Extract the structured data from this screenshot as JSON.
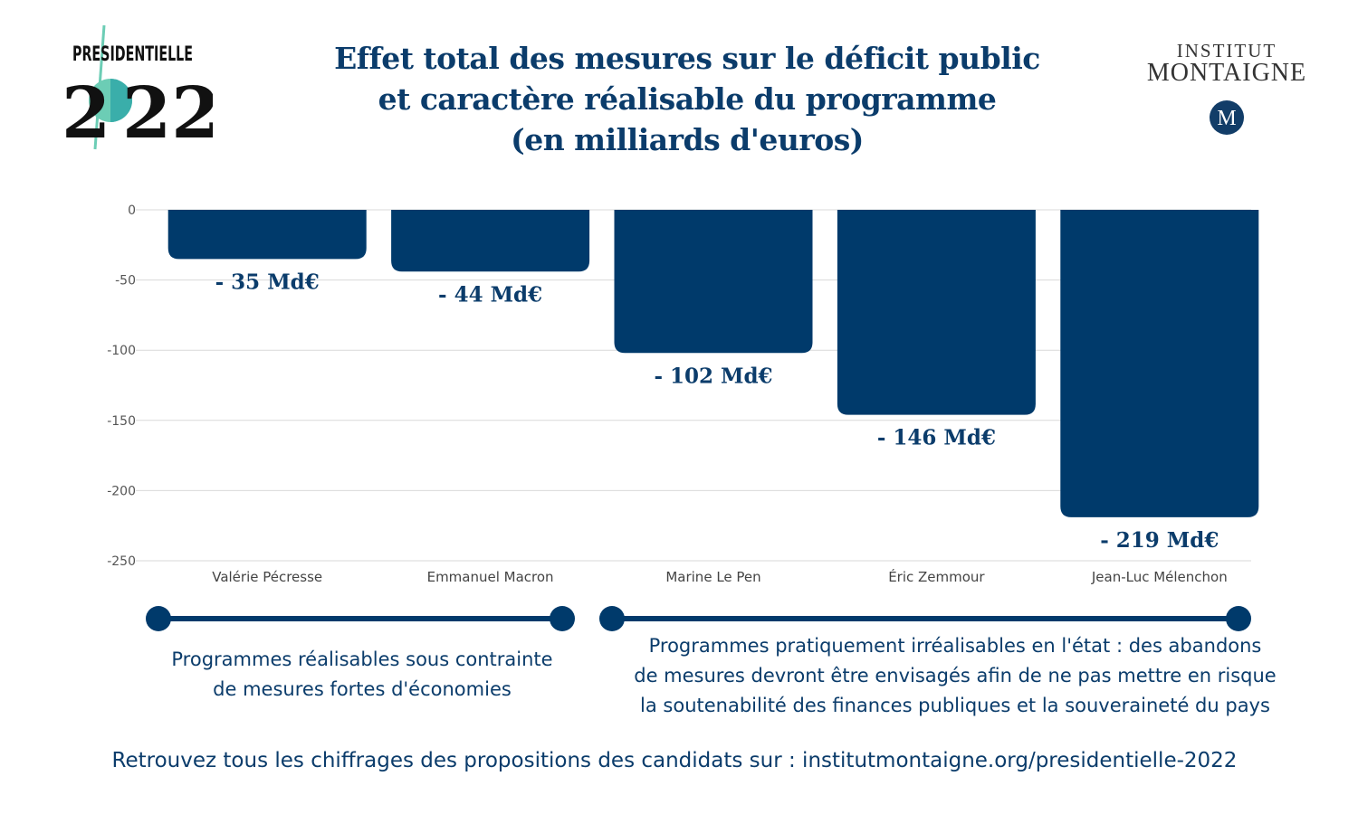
{
  "header": {
    "title_lines": [
      "Effet total des mesures sur le déficit public",
      "et caractère réalisable du programme",
      "(en milliards d'euros)"
    ],
    "logo_left": {
      "top": "PRESIDENTIELLE",
      "bottom": "2022"
    },
    "logo_right": {
      "line1": "INSTITUT",
      "line2": "MONTAIGNE",
      "emblem": "M"
    }
  },
  "chart_data": {
    "type": "bar",
    "title": "Effet total des mesures sur le déficit public et caractère réalisable du programme (en milliards d'euros)",
    "categories": [
      "Valérie Pécresse",
      "Emmanuel Macron",
      "Marine Le Pen",
      "Éric Zemmour",
      "Jean-Luc Mélenchon"
    ],
    "values": [
      -35,
      -44,
      -102,
      -146,
      -219
    ],
    "data_labels": [
      "- 35 Md€",
      "- 44 Md€",
      "- 102 Md€",
      "- 146 Md€",
      "- 219 Md€"
    ],
    "ylim": [
      -250,
      0
    ],
    "yticks": [
      0,
      -50,
      -100,
      -150,
      -200,
      -250
    ],
    "grid": true,
    "bar_color": "#003a6b",
    "grid_color": "#d9d9d9"
  },
  "groups": [
    {
      "text_lines": [
        "Programmes réalisables sous contrainte",
        "de mesures fortes d'économies"
      ]
    },
    {
      "text_lines": [
        "Programmes pratiquement irréalisables en l'état : des abandons",
        "de mesures devront être envisagés afin de ne pas mettre en risque",
        "la soutenabilité des finances publiques et la souveraineté du pays"
      ]
    }
  ],
  "footer": "Retrouvez tous les chiffrages des propositions des candidats sur : institutmontaigne.org/presidentielle-2022"
}
